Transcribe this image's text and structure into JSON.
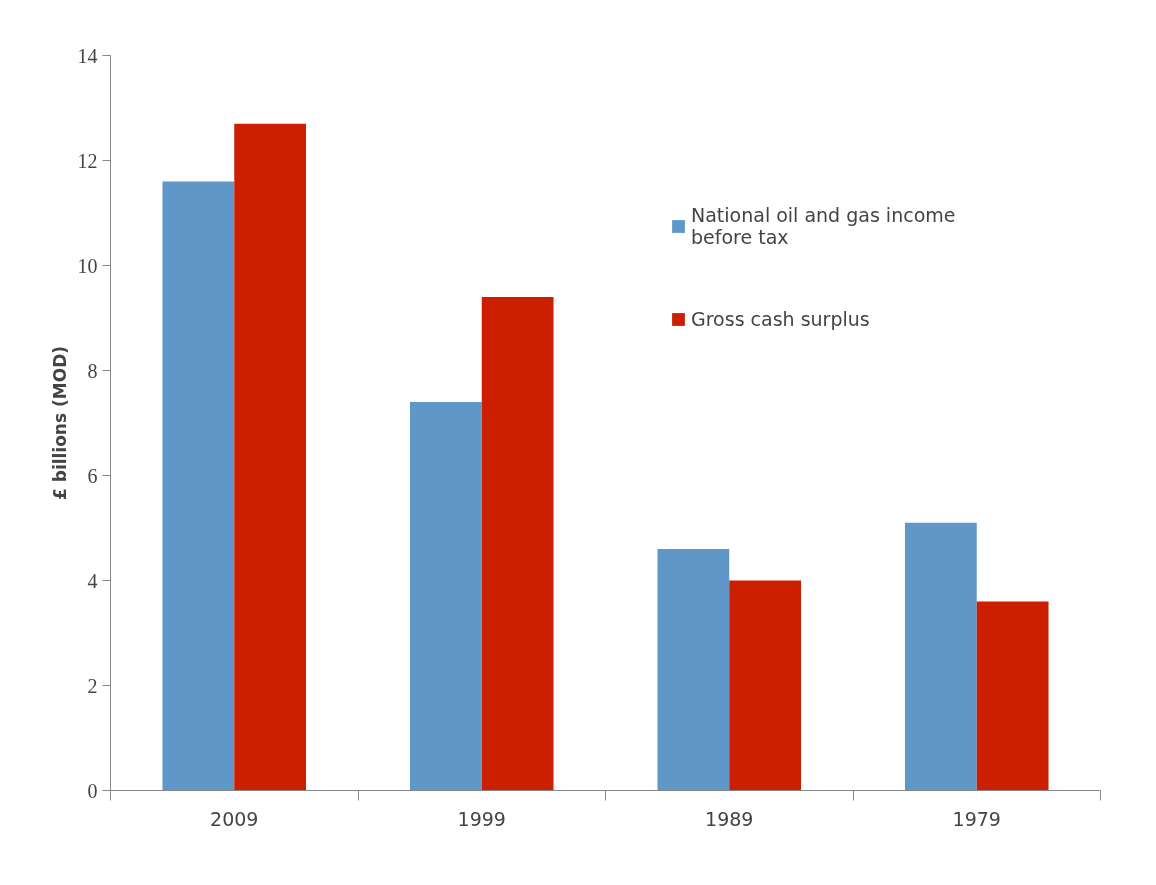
{
  "chart_data": {
    "type": "bar",
    "ylabel": "£ billions (MOD)",
    "categories": [
      "2009",
      "1999",
      "1989",
      "1979"
    ],
    "series": [
      {
        "name": "National oil and gas income before tax",
        "color": "#6097c9",
        "values": [
          11.6,
          7.4,
          4.6,
          5.1
        ]
      },
      {
        "name": "Gross cash surplus",
        "color": "#cc1f00",
        "values": [
          12.7,
          9.4,
          4.0,
          3.6
        ]
      }
    ],
    "ylim": [
      0,
      14
    ],
    "yticks": [
      0,
      2,
      4,
      6,
      8,
      10,
      12,
      14
    ],
    "grid": false,
    "legend": "right"
  }
}
